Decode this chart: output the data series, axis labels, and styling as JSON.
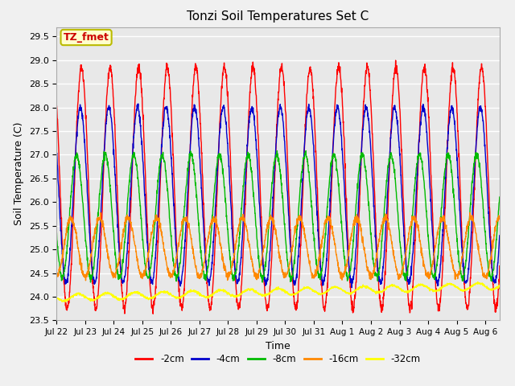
{
  "title": "Tonzi Soil Temperatures Set C",
  "xlabel": "Time",
  "ylabel": "Soil Temperature (C)",
  "annotation_text": "TZ_fmet",
  "annotation_bg": "#ffffcc",
  "annotation_border": "#bbbb00",
  "annotation_text_color": "#cc0000",
  "ylim": [
    23.5,
    29.7
  ],
  "yticks": [
    23.5,
    24.0,
    24.5,
    25.0,
    25.5,
    26.0,
    26.5,
    27.0,
    27.5,
    28.0,
    28.5,
    29.0,
    29.5
  ],
  "bg_color": "#e8e8e8",
  "grid_color": "#ffffff",
  "fig_bg_color": "#f0f0f0",
  "series_colors": [
    "#ff0000",
    "#0000cc",
    "#00bb00",
    "#ff8800",
    "#ffff00"
  ],
  "series_labels": [
    "-2cm",
    "-4cm",
    "-8cm",
    "-16cm",
    "-32cm"
  ],
  "x_tick_labels": [
    "Jul 22",
    "Jul 23",
    "Jul 24",
    "Jul 25",
    "Jul 26",
    "Jul 27",
    "Jul 28",
    "Jul 29",
    "Jul 30",
    "Jul 31",
    "Aug 1",
    "Aug 2",
    "Aug 3",
    "Aug 4",
    "Aug 5",
    "Aug 6"
  ],
  "end_day": 15.5,
  "n_points": 2000,
  "amp_2cm": 2.55,
  "mean_2cm": 26.3,
  "phase_2cm": -0.62,
  "noise_2cm": 0.05,
  "trend_2cm": 0.0,
  "amp_4cm": 1.85,
  "mean_4cm": 26.15,
  "phase_4cm": -0.58,
  "noise_4cm": 0.04,
  "trend_4cm": 0.0,
  "amp_8cm": 1.3,
  "mean_8cm": 25.7,
  "phase_8cm": -0.45,
  "noise_8cm": 0.04,
  "trend_8cm": 0.0,
  "amp_16cm": 0.62,
  "mean_16cm": 25.05,
  "phase_16cm": -0.25,
  "noise_16cm": 0.04,
  "trend_16cm": 0.0,
  "amp_32cm": 0.07,
  "mean_32cm": 23.98,
  "phase_32cm": 0.5,
  "noise_32cm": 0.012,
  "trend_32cm": 0.016
}
